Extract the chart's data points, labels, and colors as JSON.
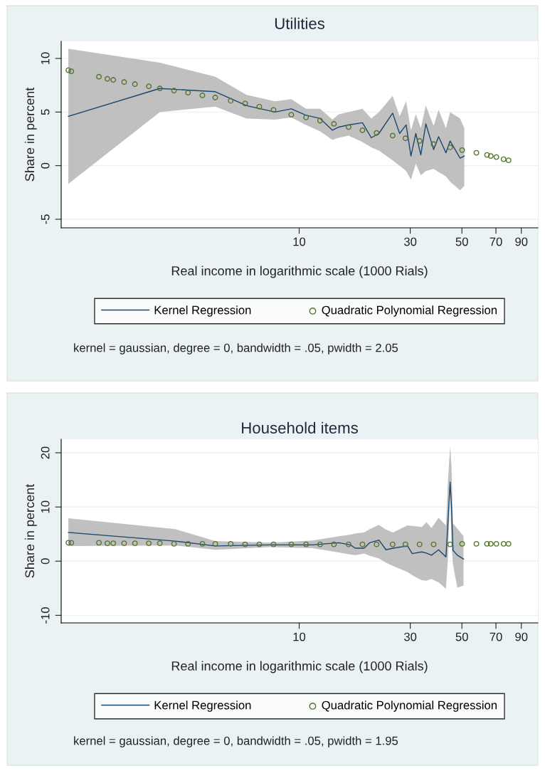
{
  "chart_data": [
    {
      "type": "line",
      "title": "Utilities",
      "xlabel": "Real income in logarithmic scale (1000 Rials)",
      "ylabel": "Share in percent",
      "log": "x",
      "grid": "y",
      "legend": "bottom",
      "xlim": [
        0.95,
        106
      ],
      "xticks": [
        10,
        30,
        50,
        70,
        90
      ],
      "ylim": [
        -5.8,
        11.6
      ],
      "yticks": [
        -5,
        0,
        5,
        10
      ],
      "annotations": [
        "kernel = gaussian, degree = 0, bandwidth = .05, pwidth = 2.05"
      ],
      "series": [
        {
          "name": "Kernel Regression",
          "type": "line",
          "color": "#1a476f",
          "x": [
            1.02,
            2.52,
            4.36,
            5.94,
            7.87,
            9.25,
            10.7,
            12.3,
            13.9,
            14.8,
            16.3,
            18.7,
            20.4,
            22.0,
            25.2,
            27.0,
            28.8,
            30.2,
            31.7,
            33.3,
            35.0,
            37.8,
            39.7,
            42.7,
            44.5,
            49.1,
            51.2
          ],
          "values": [
            4.6,
            7.2,
            6.9,
            5.6,
            5.0,
            5.3,
            4.7,
            4.4,
            3.3,
            3.6,
            3.8,
            4.0,
            2.6,
            3.0,
            4.9,
            3.0,
            3.8,
            0.9,
            3.0,
            1.0,
            3.9,
            1.5,
            2.7,
            1.2,
            2.3,
            0.7,
            0.9
          ],
          "lower": [
            -1.7,
            5.0,
            5.5,
            4.4,
            4.3,
            4.5,
            3.8,
            3.2,
            2.4,
            2.6,
            2.8,
            2.2,
            1.7,
            1.4,
            0.5,
            0.0,
            -0.5,
            -1.3,
            0.2,
            -0.9,
            -0.5,
            -0.3,
            -0.6,
            -1.0,
            -1.5,
            -2.3,
            -1.9
          ],
          "upper": [
            10.9,
            9.6,
            8.3,
            6.6,
            6.0,
            6.2,
            5.3,
            5.3,
            4.3,
            4.8,
            5.0,
            5.3,
            4.4,
            5.0,
            6.5,
            4.6,
            6.0,
            3.3,
            4.8,
            3.5,
            5.6,
            3.7,
            5.2,
            3.5,
            5.0,
            4.4,
            3.5
          ]
        },
        {
          "name": "Quadratic Polynomial Regression",
          "type": "scatter",
          "marker": "circle",
          "color": "#55752f",
          "x": [
            1.02,
            1.05,
            1.38,
            1.5,
            1.59,
            1.77,
            1.97,
            2.26,
            2.52,
            2.9,
            3.33,
            3.84,
            4.36,
            5.08,
            5.86,
            6.74,
            7.76,
            9.25,
            10.7,
            12.3,
            14.1,
            16.3,
            18.7,
            21.5,
            25.2,
            28.6,
            32.9,
            37.8,
            44.5,
            50.1,
            57.7,
            64.1,
            66.5,
            70.3,
            75.5,
            79.3
          ],
          "values": [
            8.9,
            8.8,
            8.3,
            8.1,
            8.0,
            7.8,
            7.6,
            7.4,
            7.2,
            7.0,
            6.8,
            6.55,
            6.35,
            6.05,
            5.8,
            5.5,
            5.2,
            4.75,
            4.5,
            4.2,
            3.9,
            3.6,
            3.3,
            3.05,
            2.8,
            2.55,
            2.3,
            2.0,
            1.7,
            1.45,
            1.2,
            1.0,
            0.9,
            0.8,
            0.6,
            0.5
          ]
        }
      ]
    },
    {
      "type": "line",
      "title": "Household items",
      "xlabel": "Real income in logarithmic scale (1000 Rials)",
      "ylabel": "Share in percent",
      "log": "x",
      "grid": "y",
      "legend": "bottom",
      "xlim": [
        0.95,
        106
      ],
      "xticks": [
        10,
        30,
        50,
        70,
        90
      ],
      "ylim": [
        -11.4,
        22.5
      ],
      "yticks": [
        -10,
        0,
        10,
        20
      ],
      "annotations": [
        "kernel = gaussian, degree = 0, bandwidth = .05, pwidth = 1.95"
      ],
      "series": [
        {
          "name": "Kernel Regression",
          "type": "line",
          "color": "#1a476f",
          "x": [
            1.02,
            2.94,
            4.36,
            7.5,
            11.4,
            14.8,
            16.6,
            17.4,
            19.0,
            20.1,
            22.0,
            23.6,
            25.3,
            29.2,
            30.6,
            33.6,
            35.2,
            37.0,
            39.7,
            42.7,
            43.6,
            44.5,
            45.1,
            45.8,
            47.8,
            50.8
          ],
          "values": [
            5.3,
            3.7,
            2.8,
            3.0,
            3.0,
            3.4,
            3.0,
            2.4,
            2.4,
            3.4,
            3.9,
            2.1,
            2.4,
            2.8,
            1.4,
            1.7,
            1.5,
            1.1,
            2.1,
            0.8,
            7.6,
            14.6,
            9.9,
            2.0,
            1.1,
            0.4
          ],
          "lower": [
            2.8,
            2.9,
            2.1,
            2.6,
            2.4,
            1.6,
            1.2,
            1.1,
            1.4,
            1.0,
            0.5,
            -0.3,
            -0.9,
            -2.0,
            -2.6,
            -3.5,
            -3.6,
            -3.3,
            -3.9,
            -5.1,
            1.0,
            12.9,
            3.0,
            -0.7,
            -4.9,
            -4.5
          ],
          "upper": [
            7.9,
            5.9,
            3.7,
            3.4,
            3.8,
            4.6,
            4.9,
            5.1,
            5.3,
            5.9,
            6.7,
            5.8,
            5.3,
            6.6,
            6.5,
            6.3,
            7.2,
            6.1,
            8.0,
            6.6,
            15.0,
            21.2,
            17.5,
            7.0,
            6.0,
            4.6
          ]
        },
        {
          "name": "Quadratic Polynomial Regression",
          "type": "scatter",
          "marker": "circle",
          "color": "#55752f",
          "x": [
            1.02,
            1.05,
            1.38,
            1.5,
            1.59,
            1.77,
            1.97,
            2.26,
            2.52,
            2.9,
            3.33,
            3.84,
            4.36,
            5.08,
            5.86,
            6.74,
            7.76,
            9.25,
            10.7,
            12.3,
            14.1,
            16.3,
            18.7,
            21.5,
            25.2,
            28.6,
            32.9,
            37.8,
            44.5,
            50.1,
            57.7,
            64.1,
            66.5,
            70.3,
            75.5,
            79.3
          ],
          "values": [
            3.4,
            3.4,
            3.4,
            3.3,
            3.3,
            3.3,
            3.3,
            3.3,
            3.3,
            3.2,
            3.2,
            3.2,
            3.2,
            3.2,
            3.1,
            3.1,
            3.1,
            3.1,
            3.1,
            3.1,
            3.1,
            3.1,
            3.1,
            3.1,
            3.1,
            3.1,
            3.1,
            3.1,
            3.1,
            3.2,
            3.2,
            3.2,
            3.2,
            3.2,
            3.2,
            3.2
          ]
        }
      ]
    }
  ]
}
